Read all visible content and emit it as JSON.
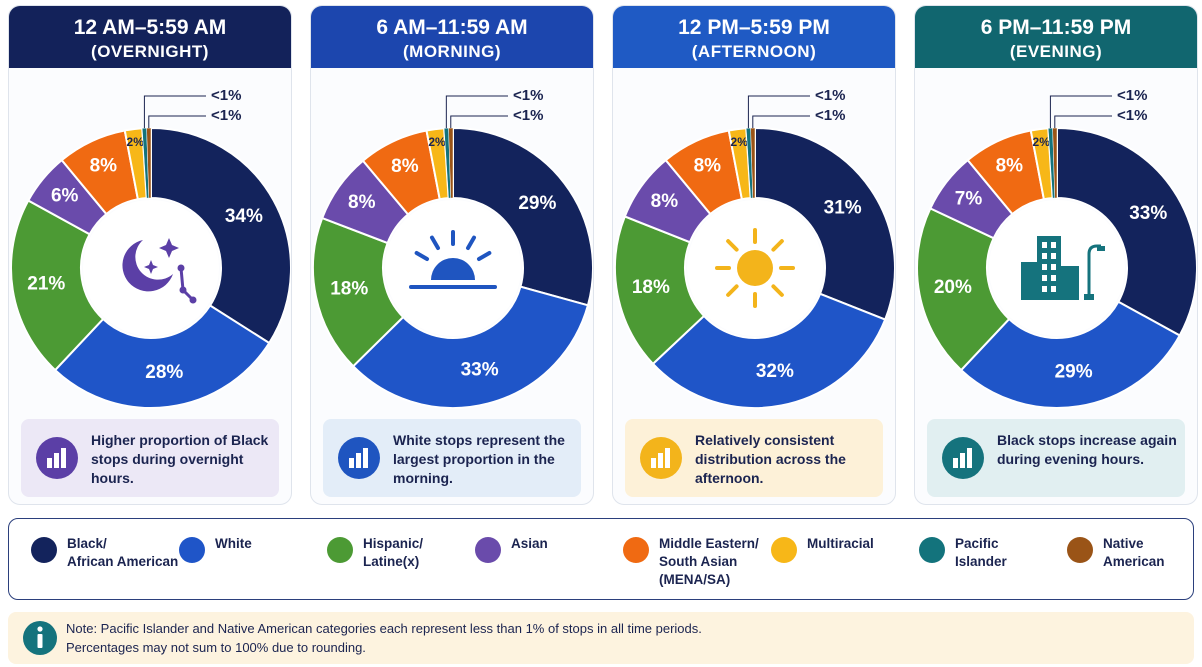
{
  "chart_data": [
    {
      "type": "pie",
      "title": "12 AM–5:59 AM",
      "subtitle": "(OVERNIGHT)",
      "header_color": "#13225a",
      "accent_color": "#5b3fa6",
      "callout_color": "#ece8f6",
      "values": [
        34,
        28,
        21,
        6,
        8,
        2,
        0.5,
        0.5
      ],
      "value_labels": [
        "34%",
        "28%",
        "21%",
        "6%",
        "8%",
        "2%",
        "<1%",
        "<1%"
      ],
      "callout": "Higher proportion of Black stops during overnight hours."
    },
    {
      "type": "pie",
      "title": "6 AM–11:59 AM",
      "subtitle": "(MORNING)",
      "header_color": "#1c46ae",
      "accent_color": "#1f55c0",
      "callout_color": "#e3edf8",
      "values": [
        29,
        33,
        18,
        8,
        8,
        2,
        0.5,
        0.5
      ],
      "value_labels": [
        "29%",
        "33%",
        "18%",
        "8%",
        "8%",
        "2%",
        "<1%",
        "<1%"
      ],
      "callout": "White stops represent the largest proportion in the morning."
    },
    {
      "type": "pie",
      "title": "12 PM–5:59 PM",
      "subtitle": "(AFTERNOON)",
      "header_color": "#1f5ac4",
      "accent_color": "#f3b41b",
      "callout_color": "#fdf1d8",
      "values": [
        31,
        32,
        18,
        8,
        8,
        2,
        0.5,
        0.5
      ],
      "value_labels": [
        "31%",
        "32%",
        "18%",
        "8%",
        "8%",
        "2%",
        "<1%",
        "<1%"
      ],
      "callout": "Relatively consistent distribution across the afternoon."
    },
    {
      "type": "pie",
      "title": "6 PM–11:59 PM",
      "subtitle": "(EVENING)",
      "header_color": "#11666f",
      "accent_color": "#15737d",
      "callout_color": "#e1eff1",
      "values": [
        33,
        29,
        20,
        7,
        8,
        2,
        0.5,
        0.5
      ],
      "value_labels": [
        "33%",
        "29%",
        "20%",
        "7%",
        "8%",
        "2%",
        "<1%",
        "<1%"
      ],
      "callout": "Black stops increase again during evening hours."
    }
  ],
  "legend": {
    "items": [
      {
        "label": "Black/\nAfrican American",
        "color": "#13235c"
      },
      {
        "label": "White",
        "color": "#1f55c8"
      },
      {
        "label": "Hispanic/\nLatine(x)",
        "color": "#4c9a34"
      },
      {
        "label": "Asian",
        "color": "#6a4bab"
      },
      {
        "label": "Middle Eastern/\nSouth Asian\n(MENA/SA)",
        "color": "#f06a12"
      },
      {
        "label": "Multiracial",
        "color": "#f7b718"
      },
      {
        "label": "Pacific\nIslander",
        "color": "#13737c"
      },
      {
        "label": "Native\nAmerican",
        "color": "#9a5417"
      }
    ]
  },
  "note": {
    "lines": [
      "Note: Pacific Islander and Native American categories each represent less than 1% of stops in all time periods.",
      "Percentages may not sum to 100% due to rounding."
    ]
  }
}
